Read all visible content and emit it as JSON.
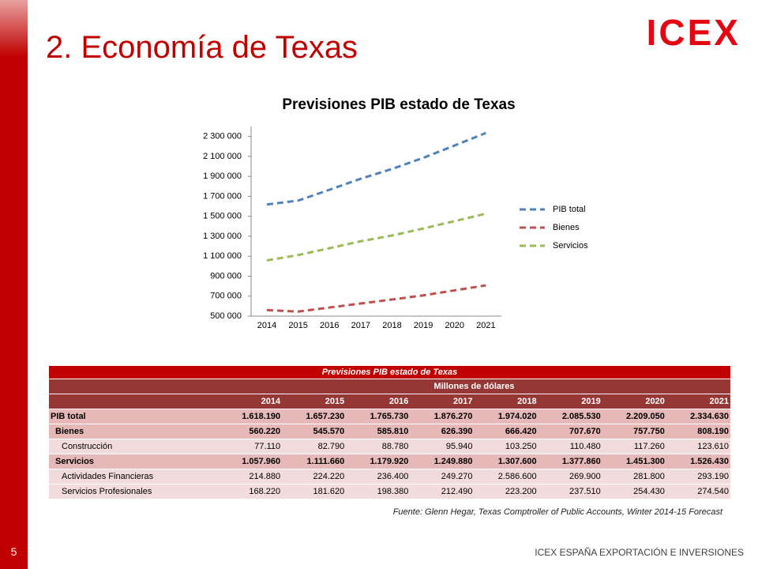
{
  "header": {
    "title": "2. Economía de Texas",
    "logo": "ICEX"
  },
  "chart_data": {
    "type": "line",
    "title": "Previsiones PIB estado de Texas",
    "categories": [
      "2014",
      "2015",
      "2016",
      "2017",
      "2018",
      "2019",
      "2020",
      "2021"
    ],
    "series": [
      {
        "name": "PIB total",
        "color": "#4f81bd",
        "values": [
          1618190,
          1657230,
          1765730,
          1876270,
          1974020,
          2085530,
          2209050,
          2334630
        ]
      },
      {
        "name": "Bienes",
        "color": "#c0504d",
        "values": [
          560220,
          545570,
          585810,
          626390,
          666420,
          707670,
          757750,
          808190
        ]
      },
      {
        "name": "Servicios",
        "color": "#9bbb59",
        "values": [
          1057960,
          1111660,
          1179920,
          1249880,
          1307600,
          1377860,
          1451300,
          1526430
        ]
      }
    ],
    "ylim": [
      500000,
      2400000
    ],
    "yticks": [
      {
        "value": 500000,
        "label": "500 000"
      },
      {
        "value": 700000,
        "label": "700 000"
      },
      {
        "value": 900000,
        "label": "900 000"
      },
      {
        "value": 1100000,
        "label": "1 100 000"
      },
      {
        "value": 1300000,
        "label": "1 300 000"
      },
      {
        "value": 1500000,
        "label": "1 500 000"
      },
      {
        "value": 1700000,
        "label": "1 700 000"
      },
      {
        "value": 1900000,
        "label": "1 900 000"
      },
      {
        "value": 2100000,
        "label": "2 100 000"
      },
      {
        "value": 2300000,
        "label": "2 300 000"
      }
    ],
    "legend": "right"
  },
  "table": {
    "title": "Previsiones PIB estado de Texas",
    "unit": "Millones de dólares",
    "columns": [
      "2014",
      "2015",
      "2016",
      "2017",
      "2018",
      "2019",
      "2020",
      "2021"
    ],
    "rows": [
      [
        "PIB total",
        "1.618.190",
        "1.657.230",
        "1.765.730",
        "1.876.270",
        "1.974.020",
        "2.085.530",
        "2.209.050",
        "2.334.630"
      ],
      [
        "Bienes",
        "560.220",
        "545.570",
        "585.810",
        "626.390",
        "666.420",
        "707.670",
        "757.750",
        "808.190"
      ],
      [
        "Construcción",
        "77.110",
        "82.790",
        "88.780",
        "95.940",
        "103.250",
        "110.480",
        "117.260",
        "123.610"
      ],
      [
        "Servicios",
        "1.057.960",
        "1.111.660",
        "1.179.920",
        "1.249.880",
        "1.307.600",
        "1.377.860",
        "1.451.300",
        "1.526.430"
      ],
      [
        "Actividades Financieras",
        "214.880",
        "224.220",
        "236.400",
        "249.270",
        "2.586.600",
        "269.900",
        "281.800",
        "293.190"
      ],
      [
        "Servicios Profesionales",
        "168.220",
        "181.620",
        "198.380",
        "212.490",
        "223.200",
        "237.510",
        "254.430",
        "274.540"
      ]
    ]
  },
  "source": "Fuente: Glenn Hegar, Texas Comptroller of Public Accounts, Winter 2014-15 Forecast",
  "footer": {
    "organization": "ICEX ESPAÑA EXPORTACIÓN E INVERSIONES",
    "page": "5"
  }
}
